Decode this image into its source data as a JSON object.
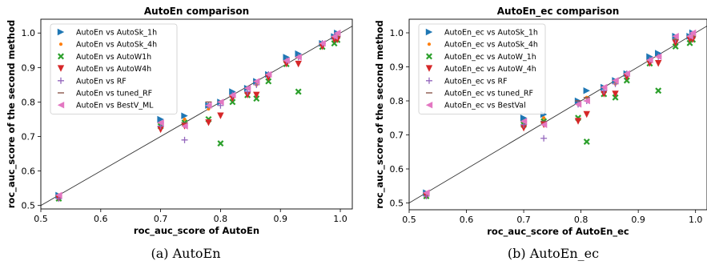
{
  "captions": [
    "(a) AutoEn",
    "(b) AutoEn_ec"
  ],
  "chart_data": [
    {
      "type": "scatter",
      "title": "AutoEn comparison",
      "xlabel": "roc_auc_score of AutoEn",
      "ylabel": "roc_auc_score of the second method",
      "xlim": [
        0.5,
        1.02
      ],
      "ylim": [
        0.49,
        1.04
      ],
      "xticks": [
        "0.5",
        "0.6",
        "0.7",
        "0.8",
        "0.9",
        "1.0"
      ],
      "yticks": [
        "0.5",
        "0.6",
        "0.7",
        "0.8",
        "0.9",
        "1.0"
      ],
      "diagonal": [
        [
          0.48,
          0.48
        ],
        [
          1.05,
          1.05
        ]
      ],
      "legend_position": "upper-left",
      "x": [
        0.53,
        0.7,
        0.74,
        0.78,
        0.8,
        0.82,
        0.845,
        0.86,
        0.88,
        0.91,
        0.93,
        0.97,
        0.99,
        0.995
      ],
      "series": [
        {
          "name": "AutoEn vs AutoSk_1h",
          "color": "#1f77b4",
          "marker": "tri-right",
          "y": [
            0.53,
            0.75,
            0.76,
            0.79,
            0.8,
            0.83,
            0.84,
            0.86,
            0.88,
            0.93,
            0.94,
            0.97,
            0.99,
            1.0
          ]
        },
        {
          "name": "AutoEn vs AutoSk_4h",
          "color": "#ff7f0e",
          "marker": "dot",
          "y": [
            0.53,
            0.74,
            0.75,
            0.78,
            0.8,
            0.82,
            0.84,
            0.85,
            0.88,
            0.92,
            0.93,
            0.97,
            0.99,
            0.995
          ]
        },
        {
          "name": "AutoEn vs AutoW1h",
          "color": "#2ca02c",
          "marker": "x",
          "y": [
            0.52,
            0.73,
            0.74,
            0.75,
            0.68,
            0.8,
            0.82,
            0.81,
            0.86,
            0.91,
            0.83,
            0.96,
            0.97,
            0.98
          ]
        },
        {
          "name": "AutoEn vs AutoW4h",
          "color": "#d62728",
          "marker": "tri-down",
          "y": [
            0.52,
            0.72,
            0.73,
            0.74,
            0.76,
            0.81,
            0.82,
            0.82,
            0.87,
            0.91,
            0.91,
            0.96,
            0.98,
            0.98
          ]
        },
        {
          "name": "AutoEn vs RF",
          "color": "#9467bd",
          "marker": "plus",
          "y": [
            0.52,
            0.73,
            0.69,
            0.79,
            0.79,
            0.82,
            0.83,
            0.85,
            0.88,
            0.92,
            0.93,
            0.97,
            0.99,
            0.99
          ]
        },
        {
          "name": "AutoEn vs tuned_RF",
          "color": "#8c564b",
          "marker": "hline",
          "y": [
            0.53,
            0.74,
            0.74,
            0.8,
            0.8,
            0.82,
            0.84,
            0.86,
            0.88,
            0.92,
            0.93,
            0.97,
            0.99,
            0.99
          ]
        },
        {
          "name": "AutoEn vs BestV_ML",
          "color": "#e377c2",
          "marker": "tri-left",
          "y": [
            0.53,
            0.74,
            0.73,
            0.79,
            0.8,
            0.82,
            0.84,
            0.86,
            0.88,
            0.92,
            0.93,
            0.97,
            0.99,
            1.0
          ]
        }
      ]
    },
    {
      "type": "scatter",
      "title": "AutoEn_ec comparison",
      "xlabel": "roc_auc_score of AutoEn_ec",
      "ylabel": "roc_auc_score of the second method",
      "xlim": [
        0.5,
        1.02
      ],
      "ylim": [
        0.48,
        1.04
      ],
      "xticks": [
        "0.5",
        "0.6",
        "0.7",
        "0.8",
        "0.9",
        "1.0"
      ],
      "yticks": [
        "0.5",
        "0.6",
        "0.7",
        "0.8",
        "0.9",
        "1.0"
      ],
      "diagonal": [
        [
          0.48,
          0.48
        ],
        [
          1.05,
          1.05
        ]
      ],
      "legend_position": "upper-left",
      "x": [
        0.53,
        0.7,
        0.735,
        0.795,
        0.81,
        0.84,
        0.86,
        0.88,
        0.92,
        0.935,
        0.965,
        0.99,
        0.995
      ],
      "series": [
        {
          "name": "AutoEn_ec vs AutoSk_1h",
          "color": "#1f77b4",
          "marker": "tri-right",
          "y": [
            0.53,
            0.75,
            0.76,
            0.8,
            0.83,
            0.84,
            0.86,
            0.88,
            0.93,
            0.94,
            0.99,
            0.99,
            1.0
          ]
        },
        {
          "name": "AutoEn_ec vs AutoSk_4h",
          "color": "#ff7f0e",
          "marker": "dot",
          "y": [
            0.53,
            0.74,
            0.75,
            0.79,
            0.81,
            0.84,
            0.85,
            0.88,
            0.92,
            0.93,
            0.98,
            0.99,
            0.99
          ]
        },
        {
          "name": "AutoEn_ec vs AutoW_1h",
          "color": "#2ca02c",
          "marker": "x",
          "y": [
            0.52,
            0.73,
            0.74,
            0.75,
            0.68,
            0.82,
            0.81,
            0.86,
            0.91,
            0.83,
            0.96,
            0.97,
            0.98
          ]
        },
        {
          "name": "AutoEn_ec vs AutoW_4h",
          "color": "#d62728",
          "marker": "tri-down",
          "y": [
            0.52,
            0.72,
            0.73,
            0.74,
            0.76,
            0.82,
            0.82,
            0.87,
            0.91,
            0.91,
            0.97,
            0.98,
            0.98
          ]
        },
        {
          "name": "AutoEn_ec vs RF",
          "color": "#9467bd",
          "marker": "plus",
          "y": [
            0.52,
            0.73,
            0.69,
            0.79,
            0.8,
            0.83,
            0.85,
            0.88,
            0.92,
            0.93,
            0.98,
            0.99,
            0.99
          ]
        },
        {
          "name": "AutoEn_ec vs tuned_RF",
          "color": "#8c564b",
          "marker": "hline",
          "y": [
            0.53,
            0.74,
            0.74,
            0.8,
            0.81,
            0.84,
            0.86,
            0.88,
            0.92,
            0.93,
            0.98,
            0.99,
            0.99
          ]
        },
        {
          "name": "AutoEn_ec vs BestVal",
          "color": "#e377c2",
          "marker": "tri-left",
          "y": [
            0.53,
            0.74,
            0.73,
            0.79,
            0.8,
            0.84,
            0.86,
            0.88,
            0.92,
            0.93,
            0.99,
            0.99,
            1.0
          ]
        }
      ]
    }
  ]
}
